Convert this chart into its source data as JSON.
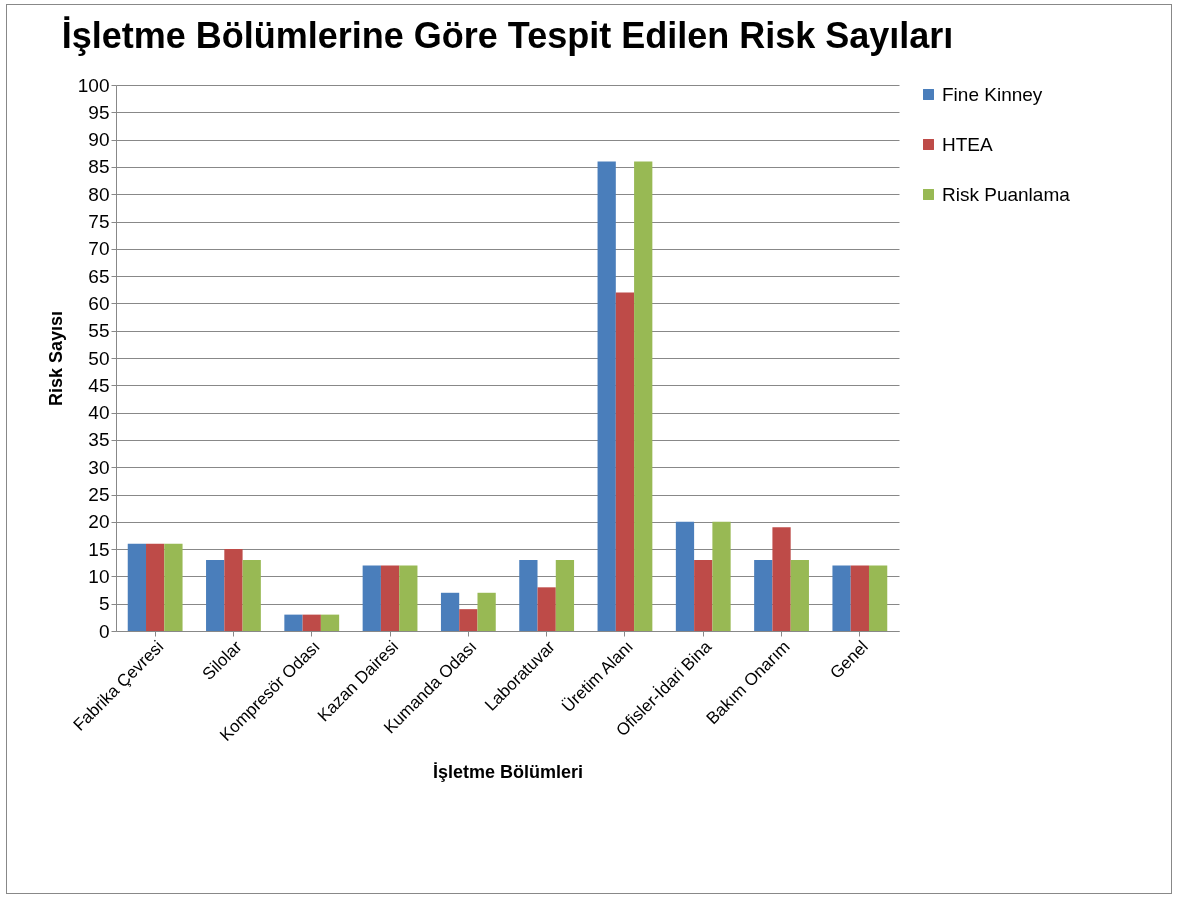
{
  "chart_data": {
    "type": "bar",
    "title": "İşletme Bölümlerine Göre Tespit Edilen Risk Sayıları",
    "xlabel": "İşletme Bölümleri",
    "ylabel": "Risk  Sayısı",
    "categories": [
      "Fabrika Çevresi",
      "Silolar",
      "Kompresör Odası",
      "Kazan Dairesi",
      "Kumanda Odası",
      "Laboratuvar",
      "Üretim Alanı",
      "Ofisler-İdari Bina",
      "Bakım Onarım",
      "Genel"
    ],
    "series": [
      {
        "name": "Fine Kinney",
        "color": "#4a7ebb",
        "values": [
          16,
          13,
          3,
          12,
          7,
          13,
          86,
          20,
          13,
          12
        ]
      },
      {
        "name": "HTEA",
        "color": "#be4b48",
        "values": [
          16,
          15,
          3,
          12,
          4,
          8,
          62,
          13,
          19,
          12
        ]
      },
      {
        "name": "Risk Puanlama",
        "color": "#98b954",
        "values": [
          16,
          13,
          3,
          12,
          7,
          13,
          86,
          20,
          13,
          12
        ]
      }
    ],
    "ylim": [
      0,
      100
    ],
    "yticks": [
      0,
      5,
      10,
      15,
      20,
      25,
      30,
      35,
      40,
      45,
      50,
      55,
      60,
      65,
      70,
      75,
      80,
      85,
      90,
      95,
      100
    ],
    "grid": "y",
    "legend": "right"
  }
}
